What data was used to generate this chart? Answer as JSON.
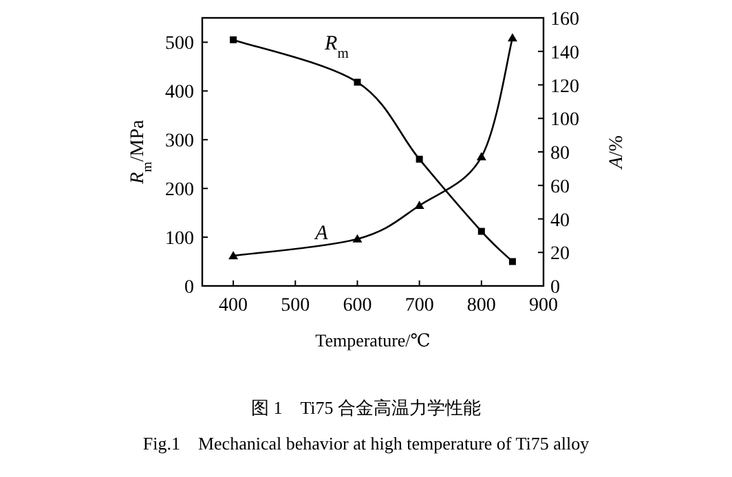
{
  "chart_data": {
    "type": "line",
    "xlabel": "Temperature/℃",
    "ylabel": "*R*$_{m}$/MPa",
    "y2label": "*A*/%",
    "annotations": [
      "图 1　Ti75 合金高温力学性能",
      "Fig.1　Mechanical behavior at high temperature of Ti75 alloy"
    ],
    "xlim": [
      350,
      900
    ],
    "xticks": [
      400,
      500,
      600,
      700,
      800,
      900
    ],
    "ylim": [
      0,
      550
    ],
    "yticks": [
      0,
      100,
      200,
      300,
      400,
      500
    ],
    "y2lim": [
      0,
      160
    ],
    "y2ticks": [
      0,
      20,
      40,
      60,
      80,
      100,
      120,
      140,
      160
    ],
    "grid": false,
    "line_style": "solid",
    "series": [
      {
        "name": "*R*$_{m}$",
        "color": "#000000",
        "marker": "square",
        "x": [
          400,
          600,
          700,
          800,
          850
        ],
        "values": [
          505,
          418,
          260,
          112,
          50
        ]
      },
      {
        "name": "*A*",
        "color": "#000000",
        "marker": "triangle",
        "axis": "y2",
        "x": [
          400,
          600,
          700,
          800,
          850
        ],
        "values": [
          18,
          28,
          48,
          77,
          148
        ]
      }
    ]
  }
}
